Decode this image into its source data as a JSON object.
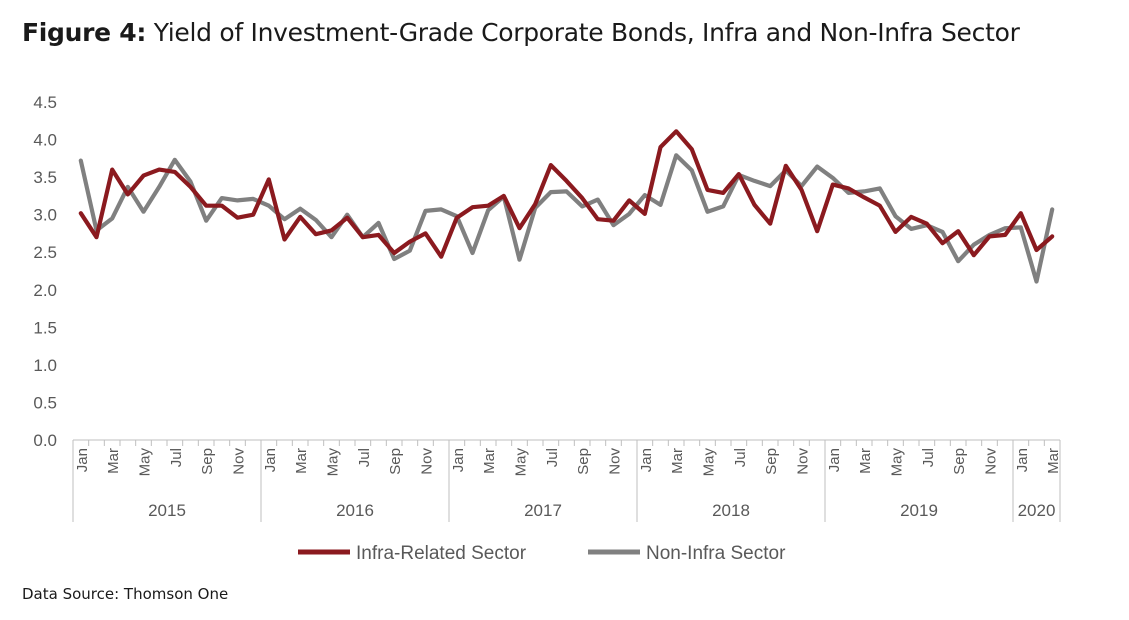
{
  "title": {
    "label": "Figure 4",
    "separator": ":",
    "text": "Yield of Investment-Grade Corporate Bonds, Infra and Non-Infra Sector"
  },
  "source": "Data Source: Thomson One",
  "colors": {
    "infra": "#8b1a1f",
    "noninfra": "#808080",
    "axis": "#bfbfbf",
    "text": "#595959"
  },
  "chart_data": {
    "type": "line",
    "ylim": [
      0,
      4.5
    ],
    "yticks": [
      "0.0",
      "0.5",
      "1.0",
      "1.5",
      "2.0",
      "2.5",
      "3.0",
      "3.5",
      "4.0",
      "4.5"
    ],
    "years": [
      {
        "label": "2015",
        "start": 0,
        "count": 12
      },
      {
        "label": "2016",
        "start": 12,
        "count": 12
      },
      {
        "label": "2017",
        "start": 24,
        "count": 12
      },
      {
        "label": "2018",
        "start": 36,
        "count": 12
      },
      {
        "label": "2019",
        "start": 48,
        "count": 12
      },
      {
        "label": "2020",
        "start": 60,
        "count": 3
      }
    ],
    "month_labels": [
      "Jan",
      "",
      "Mar",
      "",
      "May",
      "",
      "Jul",
      "",
      "Sep",
      "",
      "Nov",
      "",
      "Jan",
      "",
      "Mar",
      "",
      "May",
      "",
      "Jul",
      "",
      "Sep",
      "",
      "Nov",
      "",
      "Jan",
      "",
      "Mar",
      "",
      "May",
      "",
      "Jul",
      "",
      "Sep",
      "",
      "Nov",
      "",
      "Jan",
      "",
      "Mar",
      "",
      "May",
      "",
      "Jul",
      "",
      "Sep",
      "",
      "Nov",
      "",
      "Jan",
      "",
      "Mar",
      "",
      "May",
      "",
      "Jul",
      "",
      "Sep",
      "",
      "Nov",
      "",
      "Jan",
      "",
      "Mar"
    ],
    "series": [
      {
        "name": "Infra-Related Sector",
        "color": "#8b1a1f",
        "values": [
          3.02,
          2.7,
          3.6,
          3.27,
          3.52,
          3.6,
          3.57,
          3.37,
          3.12,
          3.12,
          2.96,
          3.0,
          3.47,
          2.67,
          2.97,
          2.74,
          2.79,
          2.96,
          2.7,
          2.73,
          2.49,
          2.64,
          2.75,
          2.44,
          2.96,
          3.1,
          3.12,
          3.25,
          2.82,
          3.14,
          3.66,
          3.45,
          3.22,
          2.94,
          2.92,
          3.19,
          3.01,
          3.9,
          4.11,
          3.87,
          3.33,
          3.29,
          3.54,
          3.13,
          2.88,
          3.65,
          3.33,
          2.78,
          3.4,
          3.35,
          3.23,
          3.12,
          2.77,
          2.97,
          2.88,
          2.62,
          2.78,
          2.46,
          2.71,
          2.73,
          3.02,
          2.53,
          2.71
        ]
      },
      {
        "name": "Non-Infra Sector",
        "color": "#808080",
        "values": [
          3.72,
          2.79,
          2.95,
          3.37,
          3.04,
          3.37,
          3.73,
          3.44,
          2.92,
          3.22,
          3.19,
          3.21,
          3.12,
          2.94,
          3.08,
          2.93,
          2.7,
          3.0,
          2.7,
          2.89,
          2.41,
          2.52,
          3.05,
          3.07,
          2.98,
          2.49,
          3.06,
          3.24,
          2.4,
          3.09,
          3.3,
          3.31,
          3.11,
          3.2,
          2.86,
          3.01,
          3.26,
          3.13,
          3.79,
          3.59,
          3.04,
          3.11,
          3.53,
          3.45,
          3.38,
          3.59,
          3.38,
          3.64,
          3.49,
          3.29,
          3.31,
          3.35,
          2.98,
          2.81,
          2.86,
          2.77,
          2.38,
          2.6,
          2.73,
          2.82,
          2.83,
          2.11,
          3.07
        ]
      }
    ],
    "legend_position": "bottom",
    "grid": false
  }
}
